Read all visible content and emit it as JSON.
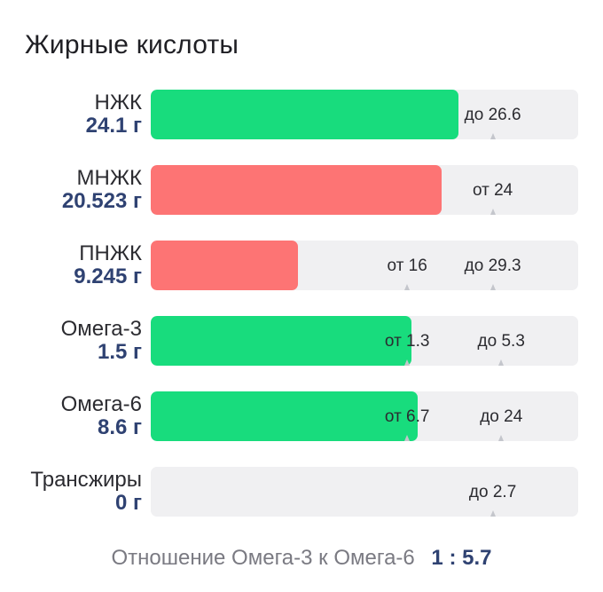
{
  "title": "Жирные кислоты",
  "colors": {
    "ok": "#18dc7d",
    "bad": "#fd7474",
    "track": "#f0f0f2",
    "amount": "#2f4272"
  },
  "rows": [
    {
      "name": "НЖК",
      "amount": "24.1 г",
      "status": "ok",
      "level": 0.72,
      "marks": [
        {
          "label": "до 26.6",
          "pos": 0.8
        }
      ]
    },
    {
      "name": "МНЖК",
      "amount": "20.523 г",
      "status": "bad",
      "level": 0.68,
      "marks": [
        {
          "label": "от 24",
          "pos": 0.8
        }
      ]
    },
    {
      "name": "ПНЖК",
      "amount": "9.245 г",
      "status": "bad",
      "level": 0.345,
      "marks": [
        {
          "label": "от 16",
          "pos": 0.6
        },
        {
          "label": "до 29.3",
          "pos": 0.8
        }
      ]
    },
    {
      "name": "Омега-3",
      "amount": "1.5 г",
      "status": "ok",
      "level": 0.61,
      "marks": [
        {
          "label": "от 1.3",
          "pos": 0.6
        },
        {
          "label": "до 5.3",
          "pos": 0.82
        }
      ]
    },
    {
      "name": "Омега-6",
      "amount": "8.6 г",
      "status": "ok",
      "level": 0.625,
      "marks": [
        {
          "label": "от 6.7",
          "pos": 0.6
        },
        {
          "label": "до 24",
          "pos": 0.82
        }
      ]
    },
    {
      "name": "Трансжиры",
      "amount": "0 г",
      "status": "ok",
      "level": 0,
      "marks": [
        {
          "label": "до 2.7",
          "pos": 0.8
        }
      ]
    }
  ],
  "ratio": {
    "label": "Отношение Омега-3 к Омега-6",
    "value": "1 : 5.7"
  }
}
